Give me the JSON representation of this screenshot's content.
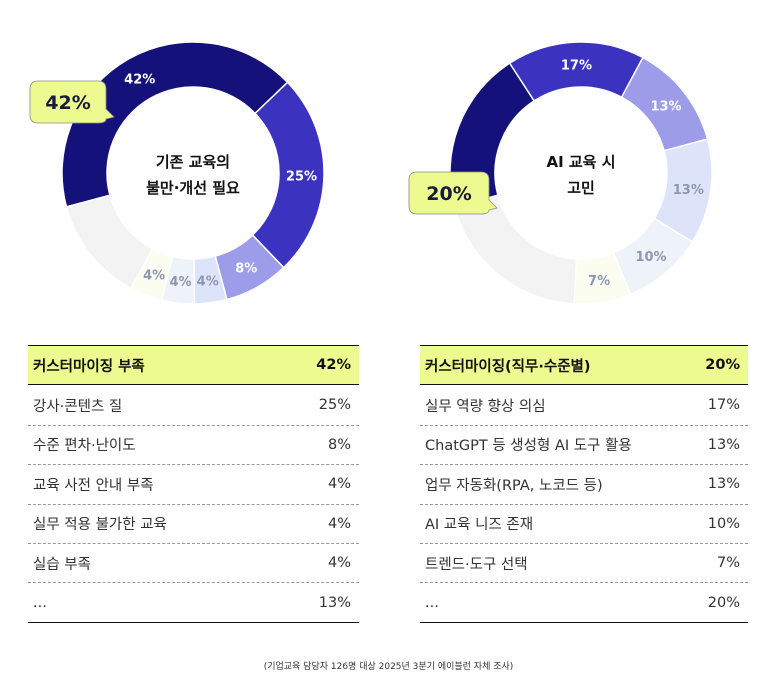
{
  "chart_data": [
    {
      "type": "pie",
      "title": "기존 교육의\n불만·개선 필요",
      "slices": [
        {
          "label": "커스터마이징 부족",
          "value": 42,
          "value_label": "42%",
          "color": "#14127a"
        },
        {
          "label": "강사·콘텐츠 질",
          "value": 25,
          "value_label": "25%",
          "color": "#3b33c0"
        },
        {
          "label": "수준 편차·난이도",
          "value": 8,
          "value_label": "8%",
          "color": "#9c9ce8"
        },
        {
          "label": "교육 사전 안내 부족",
          "value": 4,
          "value_label": "4%",
          "color": "#dde4fa"
        },
        {
          "label": "실무 적용 불가한 교육",
          "value": 4,
          "value_label": "4%",
          "color": "#eef2fb"
        },
        {
          "label": "실습 부족",
          "value": 4,
          "value_label": "4%",
          "color": "#fbfdf0"
        },
        {
          "label": "...",
          "value": 13,
          "value_label": "",
          "color": "#f3f3f3"
        }
      ],
      "callout": "42%"
    },
    {
      "type": "pie",
      "title": "AI 교육 시\n고민",
      "slices": [
        {
          "label": "커스터마이징(직무·수준별)",
          "value": 20,
          "value_label": "",
          "color": "#14127a"
        },
        {
          "label": "실무 역량 향상 의심",
          "value": 17,
          "value_label": "17%",
          "color": "#3b33c0"
        },
        {
          "label": "ChatGPT 등 생성형 AI 도구 활용",
          "value": 13,
          "value_label": "13%",
          "color": "#9c9ce8"
        },
        {
          "label": "업무 자동화(RPA, 노코드 등)",
          "value": 13,
          "value_label": "13%",
          "color": "#dde4fa"
        },
        {
          "label": "AI 교육 니즈 존재",
          "value": 10,
          "value_label": "10%",
          "color": "#eef2f9"
        },
        {
          "label": "트렌드·도구 선택",
          "value": 7,
          "value_label": "7%",
          "color": "#fcfdf1"
        },
        {
          "label": "...",
          "value": 20,
          "value_label": "",
          "color": "#f3f3f3"
        }
      ],
      "callout": "20%"
    }
  ],
  "tables": {
    "left": [
      {
        "label": "커스터마이징 부족",
        "value": "42%"
      },
      {
        "label": "강사·콘텐츠 질",
        "value": "25%"
      },
      {
        "label": "수준 편차·난이도",
        "value": "8%"
      },
      {
        "label": "교육 사전 안내 부족",
        "value": "4%"
      },
      {
        "label": "실무 적용 불가한 교육",
        "value": "4%"
      },
      {
        "label": "실습 부족",
        "value": "4%"
      },
      {
        "label": "...",
        "value": "13%"
      }
    ],
    "right": [
      {
        "label": "커스터마이징(직무·수준별)",
        "value": "20%"
      },
      {
        "label": "실무 역량 향상 의심",
        "value": "17%"
      },
      {
        "label": "ChatGPT 등 생성형 AI 도구 활용",
        "value": "13%"
      },
      {
        "label": "업무 자동화(RPA, 노코드 등)",
        "value": "13%"
      },
      {
        "label": "AI 교육 니즈 존재",
        "value": "10%"
      },
      {
        "label": "트렌드·도구 선택",
        "value": "7%"
      },
      {
        "label": "...",
        "value": "20%"
      }
    ]
  },
  "footnote": "(기업교육 담당자 126명 대상 2025년 3분기 에이블런 자체 조사)"
}
